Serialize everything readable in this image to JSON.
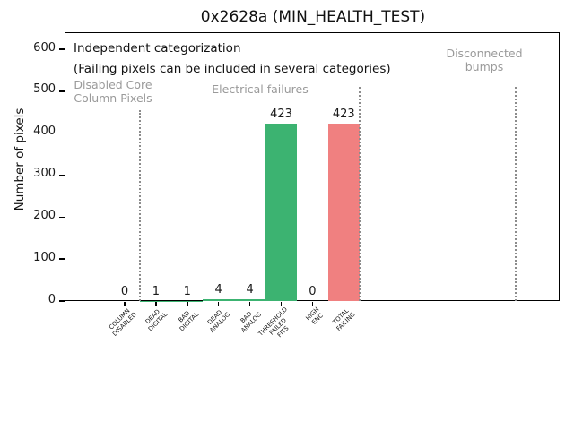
{
  "window": {
    "title": "0x2628a (MIN_HEALTH_TEST)"
  },
  "colors": {
    "pass_green": "#3cb371",
    "fail_red": "#f08080",
    "section_gray_text": "#9a9a9a",
    "divider_gray": "#8c8c8c",
    "axis_black": "#000000",
    "background": "#ffffff"
  },
  "chart_data": {
    "type": "bar",
    "title": "0x2628a (MIN_HEALTH_TEST)",
    "xlabel": "",
    "ylabel": "Number of pixels",
    "ylim": [
      0,
      638
    ],
    "yticks": [
      0,
      100,
      200,
      300,
      400,
      500,
      600
    ],
    "grid": false,
    "legend": null,
    "categories": [
      "COLUMN DISABLED",
      "DEAD DIGITAL",
      "BAD DIGITAL",
      "DEAD ANALOG",
      "BAD ANALOG",
      "THRESHOLD FAILED FITS",
      "HIGH ENC",
      "TOTAL FAILING"
    ],
    "category_label_lines": [
      [
        "COLUMN",
        "DISABLED"
      ],
      [
        "DEAD",
        "DIGITAL"
      ],
      [
        "BAD",
        "DIGITAL"
      ],
      [
        "DEAD",
        "ANALOG"
      ],
      [
        "BAD",
        "ANALOG"
      ],
      [
        "THRESHOLD",
        "FAILED",
        "FITS"
      ],
      [
        "HIGH",
        "ENC"
      ],
      [
        "TOTAL",
        "FAILING"
      ]
    ],
    "values": [
      0,
      1,
      1,
      4,
      4,
      423,
      0,
      423
    ],
    "value_labels": [
      "0",
      "1",
      "1",
      "4",
      "4",
      "423",
      "0",
      "423"
    ],
    "bar_colors": [
      "#3cb371",
      "#3cb371",
      "#3cb371",
      "#3cb371",
      "#3cb371",
      "#3cb371",
      "#3cb371",
      "#f08080"
    ],
    "x_tick_label_rotation_deg": 45,
    "annotation": {
      "line1": "Independent categorization",
      "line2": "(Failing pixels can be included in several categories)"
    },
    "sections": [
      {
        "lines": [
          "Disabled Core",
          "Column Pixels"
        ]
      },
      {
        "lines": [
          "Electrical failures"
        ]
      },
      {
        "lines": [
          "Disconnected",
          "bumps"
        ]
      }
    ],
    "section_dividers": [
      {
        "x_categories": 0.5,
        "ymax_value": 455
      },
      {
        "x_categories": 7.5,
        "ymax_value": 510
      },
      {
        "x_categories": 12.5,
        "ymax_value": 510
      }
    ]
  }
}
